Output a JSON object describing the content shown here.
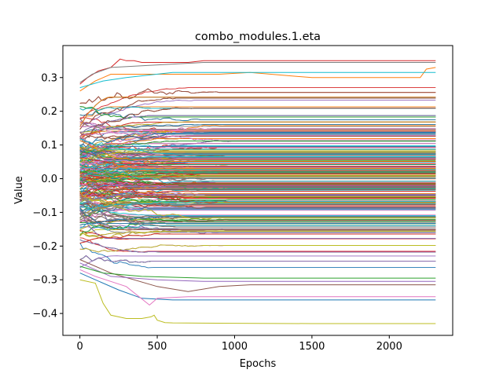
{
  "chart_data": {
    "type": "line",
    "title": "combo_modules.1.eta",
    "xlabel": "Epochs",
    "ylabel": "Value",
    "xlim": [
      -110,
      2410
    ],
    "ylim": [
      -0.465,
      0.395
    ],
    "xticks": [
      0,
      500,
      1000,
      1500,
      2000
    ],
    "xtick_labels": [
      "0",
      "500",
      "1000",
      "1500",
      "2000"
    ],
    "yticks": [
      -0.4,
      -0.3,
      -0.2,
      -0.1,
      0.0,
      0.1,
      0.2,
      0.3
    ],
    "ytick_labels": [
      "−0.4",
      "−0.3",
      "−0.2",
      "−0.1",
      "0.0",
      "0.1",
      "0.2",
      "0.3"
    ],
    "grid": false,
    "legend": "none",
    "x_end": 2300,
    "series_count_approx": 600,
    "final_value_range": [
      -0.43,
      0.35
    ],
    "highlighted_series": [
      {
        "color": "#bcbd22",
        "x": [
          0,
          100,
          150,
          200,
          300,
          400,
          460,
          480,
          500,
          550,
          600,
          1000,
          1500,
          2000,
          2300
        ],
        "values": [
          -0.3,
          -0.31,
          -0.37,
          -0.405,
          -0.415,
          -0.415,
          -0.41,
          -0.405,
          -0.42,
          -0.427,
          -0.428,
          -0.429,
          -0.43,
          -0.43,
          -0.43
        ]
      },
      {
        "color": "#d62728",
        "x": [
          0,
          50,
          120,
          200,
          260,
          300,
          350,
          400,
          500,
          700,
          800,
          1000,
          1500,
          2000,
          2300
        ],
        "values": [
          0.28,
          0.3,
          0.32,
          0.33,
          0.355,
          0.35,
          0.35,
          0.345,
          0.345,
          0.345,
          0.35,
          0.35,
          0.35,
          0.35,
          0.35
        ]
      },
      {
        "color": "#ff7f0e",
        "x": [
          0,
          100,
          200,
          500,
          900,
          1100,
          1500,
          2000,
          2200,
          2240,
          2300
        ],
        "values": [
          0.26,
          0.29,
          0.31,
          0.31,
          0.31,
          0.315,
          0.3,
          0.3,
          0.3,
          0.325,
          0.33
        ]
      },
      {
        "color": "#7f7f7f",
        "x": [
          0,
          80,
          200,
          400,
          600,
          800,
          1000,
          1500,
          2000,
          2300
        ],
        "values": [
          0.285,
          0.31,
          0.33,
          0.335,
          0.34,
          0.345,
          0.345,
          0.345,
          0.345,
          0.345
        ]
      },
      {
        "color": "#17becf",
        "x": [
          0,
          150,
          300,
          600,
          1000,
          1500,
          2000,
          2300
        ],
        "values": [
          0.27,
          0.29,
          0.3,
          0.315,
          0.315,
          0.315,
          0.315,
          0.315
        ]
      },
      {
        "color": "#1f77b4",
        "x": [
          0,
          100,
          250,
          400,
          600,
          1000,
          1500,
          2300
        ],
        "values": [
          -0.28,
          -0.3,
          -0.33,
          -0.355,
          -0.36,
          -0.36,
          -0.36,
          -0.36
        ]
      },
      {
        "color": "#e377c2",
        "x": [
          0,
          100,
          300,
          450,
          500,
          700,
          1000,
          2300
        ],
        "values": [
          -0.27,
          -0.29,
          -0.32,
          -0.375,
          -0.355,
          -0.35,
          -0.35,
          -0.35
        ]
      },
      {
        "color": "#8c564b",
        "x": [
          0,
          200,
          500,
          700,
          900,
          1100,
          2300
        ],
        "values": [
          -0.24,
          -0.28,
          -0.32,
          -0.335,
          -0.32,
          -0.315,
          -0.315
        ]
      },
      {
        "color": "#9467bd",
        "x": [
          0,
          200,
          500,
          800,
          1500,
          2300
        ],
        "values": [
          -0.25,
          -0.29,
          -0.3,
          -0.305,
          -0.305,
          -0.305
        ]
      },
      {
        "color": "#2ca02c",
        "x": [
          0,
          150,
          400,
          800,
          2300
        ],
        "values": [
          -0.26,
          -0.28,
          -0.29,
          -0.295,
          -0.295
        ]
      }
    ]
  }
}
